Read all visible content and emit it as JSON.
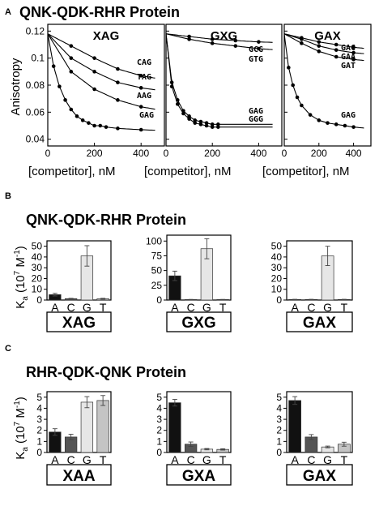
{
  "section_a": {
    "letter": "A",
    "title": "QNK-QDK-RHR Protein",
    "ylabel": "Anisotropy",
    "xlabel": "[competitor], nM",
    "yticks": [
      "0.12",
      "0.1",
      "0.08",
      "0.06",
      "0.04"
    ],
    "xticks": [
      "0",
      "200",
      "400"
    ]
  },
  "section_b": {
    "letter": "B",
    "title": "QNK-QDK-RHR Protein",
    "ylabel_k": "K",
    "ylabel_sub": "a",
    "ylabel_rest": " (10",
    "ylabel_exp": "7",
    "ylabel_unit": " M",
    "ylabel_unit_exp": "-1",
    "ylabel_close": ")"
  },
  "section_c": {
    "letter": "C",
    "title": "RHR-QDK-QNK Protein",
    "ylabel_k": "K",
    "ylabel_sub": "a",
    "ylabel_rest": " (10",
    "ylabel_exp": "7",
    "ylabel_unit": " M",
    "ylabel_unit_exp": "-1",
    "ylabel_close": ")"
  },
  "chart_data": [
    {
      "type": "line",
      "panel": "A-XAG",
      "title": "XAG",
      "xlabel": "[competitor], nM",
      "ylabel": "Anisotropy",
      "xlim": [
        0,
        500
      ],
      "ylim": [
        0.035,
        0.125
      ],
      "series": [
        {
          "name": "CAG",
          "x": [
            0,
            100,
            200,
            300,
            400
          ],
          "y": [
            0.118,
            0.109,
            0.1,
            0.092,
            0.087
          ]
        },
        {
          "name": "TAG",
          "x": [
            0,
            100,
            200,
            300,
            400
          ],
          "y": [
            0.118,
            0.1,
            0.09,
            0.082,
            0.078
          ]
        },
        {
          "name": "AAG",
          "x": [
            0,
            100,
            200,
            300,
            400
          ],
          "y": [
            0.118,
            0.09,
            0.077,
            0.069,
            0.064
          ]
        },
        {
          "name": "GAG",
          "x": [
            0,
            25,
            50,
            75,
            100,
            125,
            150,
            175,
            200,
            225,
            250,
            300,
            400
          ],
          "y": [
            0.118,
            0.094,
            0.079,
            0.069,
            0.062,
            0.057,
            0.054,
            0.052,
            0.05,
            0.05,
            0.049,
            0.048,
            0.047
          ]
        }
      ]
    },
    {
      "type": "line",
      "panel": "A-GXG",
      "title": "GXG",
      "xlabel": "[competitor], nM",
      "xlim": [
        0,
        500
      ],
      "ylim": [
        0.035,
        0.125
      ],
      "series": [
        {
          "name": "GCG",
          "x": [
            0,
            100,
            200,
            300,
            400
          ],
          "y": [
            0.118,
            0.116,
            0.114,
            0.113,
            0.112
          ]
        },
        {
          "name": "GTG",
          "x": [
            0,
            100,
            200,
            300,
            400
          ],
          "y": [
            0.118,
            0.114,
            0.111,
            0.109,
            0.107
          ]
        },
        {
          "name": "GAG",
          "x": [
            0,
            25,
            50,
            75,
            100,
            125,
            150,
            175,
            200,
            225
          ],
          "y": [
            0.118,
            0.082,
            0.069,
            0.061,
            0.057,
            0.054,
            0.053,
            0.052,
            0.051,
            0.051
          ]
        },
        {
          "name": "GGG",
          "x": [
            0,
            25,
            50,
            75,
            100,
            125,
            150,
            175,
            200,
            225
          ],
          "y": [
            0.118,
            0.079,
            0.066,
            0.059,
            0.055,
            0.052,
            0.051,
            0.05,
            0.049,
            0.049
          ]
        }
      ]
    },
    {
      "type": "line",
      "panel": "A-GAX",
      "title": "GAX",
      "xlabel": "[competitor], nM",
      "xlim": [
        0,
        500
      ],
      "ylim": [
        0.035,
        0.125
      ],
      "series": [
        {
          "name": "GAC",
          "x": [
            0,
            100,
            200,
            300,
            400
          ],
          "y": [
            0.118,
            0.115,
            0.112,
            0.11,
            0.108
          ]
        },
        {
          "name": "GAA",
          "x": [
            0,
            100,
            200,
            300,
            400
          ],
          "y": [
            0.118,
            0.114,
            0.109,
            0.106,
            0.104
          ]
        },
        {
          "name": "GAT",
          "x": [
            0,
            100,
            200,
            300,
            400
          ],
          "y": [
            0.118,
            0.111,
            0.105,
            0.101,
            0.099
          ]
        },
        {
          "name": "GAG",
          "x": [
            0,
            25,
            50,
            75,
            100,
            150,
            200,
            250,
            300,
            350,
            400
          ],
          "y": [
            0.118,
            0.093,
            0.08,
            0.071,
            0.065,
            0.058,
            0.054,
            0.052,
            0.051,
            0.05,
            0.049
          ]
        }
      ]
    },
    {
      "type": "bar",
      "panel": "B-XAG",
      "label": "XAG",
      "categories": [
        "A",
        "C",
        "G",
        "T"
      ],
      "values": [
        5,
        1.3,
        41,
        1.2
      ],
      "errors": [
        1.2,
        0.3,
        9.5,
        0.4
      ],
      "colors": [
        "#111111",
        "#555555",
        "#e6e6e6",
        "#c4c4c4"
      ],
      "ylim": [
        0,
        55
      ],
      "yticks": [
        0,
        10,
        20,
        30,
        40,
        50
      ]
    },
    {
      "type": "bar",
      "panel": "B-GXG",
      "label": "GXG",
      "categories": [
        "A",
        "C",
        "G",
        "T"
      ],
      "values": [
        41,
        0.8,
        87,
        0.8
      ],
      "errors": [
        8,
        0.3,
        17,
        0.3
      ],
      "colors": [
        "#111111",
        "#555555",
        "#e6e6e6",
        "#c4c4c4"
      ],
      "ylim": [
        0,
        110
      ],
      "yticks": [
        0,
        25,
        50,
        75,
        100
      ]
    },
    {
      "type": "bar",
      "panel": "B-GAX",
      "label": "GAX",
      "categories": [
        "A",
        "C",
        "G",
        "T"
      ],
      "values": [
        0.5,
        0.5,
        41,
        0.5
      ],
      "errors": [
        0.2,
        0.2,
        9,
        0.2
      ],
      "colors": [
        "#111111",
        "#555555",
        "#e6e6e6",
        "#c4c4c4"
      ],
      "ylim": [
        0,
        55
      ],
      "yticks": [
        0,
        10,
        20,
        30,
        40,
        50
      ]
    },
    {
      "type": "bar",
      "panel": "C-XAA",
      "label": "XAA",
      "categories": [
        "A",
        "C",
        "G",
        "T"
      ],
      "values": [
        1.85,
        1.4,
        4.55,
        4.7
      ],
      "errors": [
        0.3,
        0.25,
        0.5,
        0.45
      ],
      "colors": [
        "#111111",
        "#555555",
        "#e6e6e6",
        "#c4c4c4"
      ],
      "ylim": [
        0,
        5.5
      ],
      "yticks": [
        0,
        1,
        2,
        3,
        4,
        5
      ]
    },
    {
      "type": "bar",
      "panel": "C-GXA",
      "label": "GXA",
      "categories": [
        "A",
        "C",
        "G",
        "T"
      ],
      "values": [
        4.5,
        0.75,
        0.3,
        0.28
      ],
      "errors": [
        0.3,
        0.2,
        0.06,
        0.06
      ],
      "colors": [
        "#111111",
        "#555555",
        "#e6e6e6",
        "#c4c4c4"
      ],
      "ylim": [
        0,
        5.5
      ],
      "yticks": [
        0,
        1,
        2,
        3,
        4,
        5
      ]
    },
    {
      "type": "bar",
      "panel": "C-GAX",
      "label": "GAX",
      "categories": [
        "A",
        "C",
        "G",
        "T"
      ],
      "values": [
        4.7,
        1.4,
        0.5,
        0.75
      ],
      "errors": [
        0.35,
        0.22,
        0.08,
        0.18
      ],
      "colors": [
        "#111111",
        "#555555",
        "#e6e6e6",
        "#c4c4c4"
      ],
      "ylim": [
        0,
        5.5
      ],
      "yticks": [
        0,
        1,
        2,
        3,
        4,
        5
      ]
    }
  ]
}
